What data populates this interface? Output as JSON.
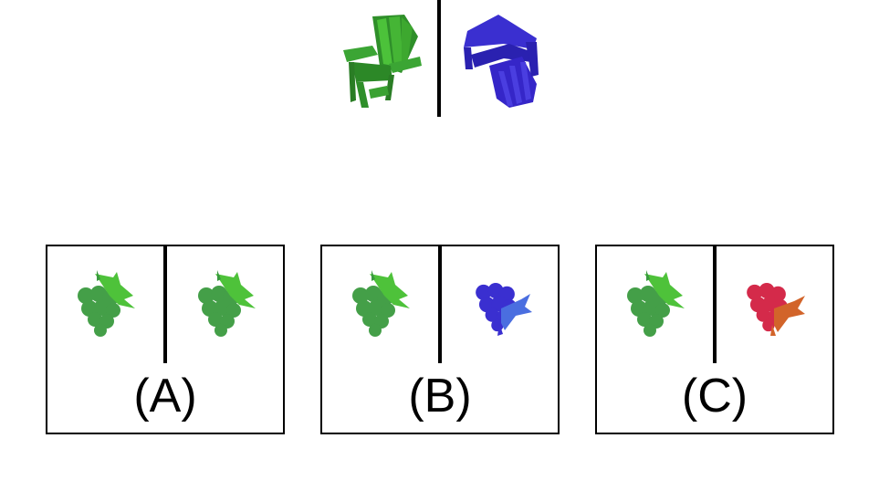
{
  "puzzle": {
    "top_pair": {
      "left_icon": "green-chair-icon",
      "right_icon": "blue-chair-icon"
    },
    "options": [
      {
        "label": "(A)",
        "left_icon": "green-grapes-icon",
        "right_icon": "green-grapes-icon"
      },
      {
        "label": "(B)",
        "left_icon": "green-grapes-icon",
        "right_icon": "blue-grapes-icon"
      },
      {
        "label": "(C)",
        "left_icon": "green-grapes-icon",
        "right_icon": "red-grapes-icon"
      }
    ],
    "colors": {
      "green": "#3a9a3f",
      "green_light": "#4ec23a",
      "blue": "#3a2fd0",
      "red": "#d42a4a",
      "orange": "#d2642a"
    }
  }
}
